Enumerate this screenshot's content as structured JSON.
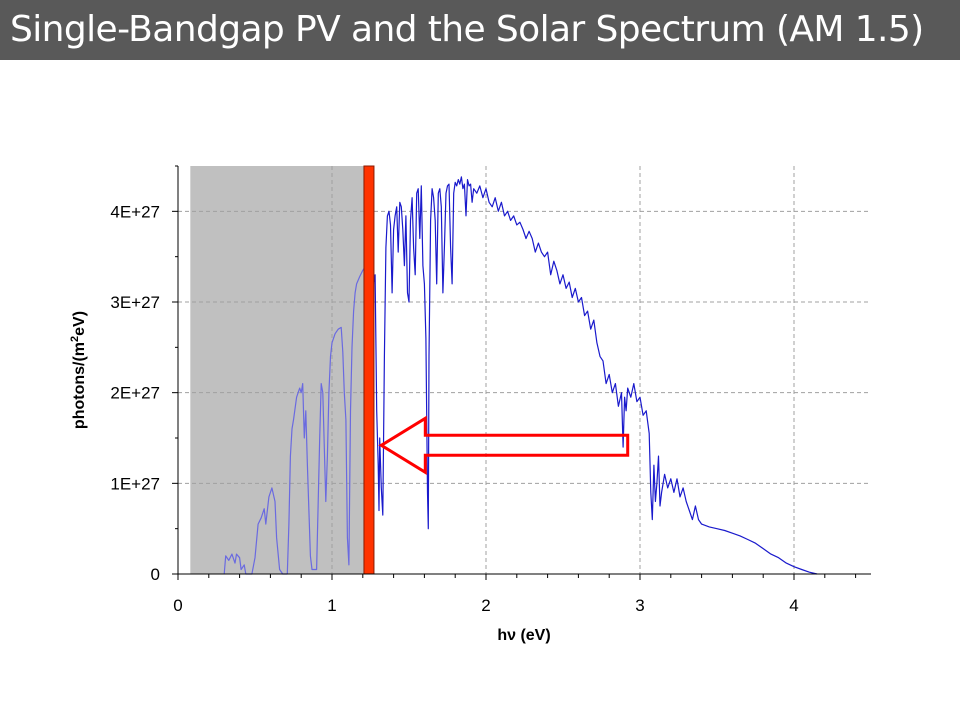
{
  "slide": {
    "title": "Single-Bandgap PV and the Solar Spectrum (AM 1.5)"
  },
  "chart_data": {
    "type": "line",
    "title": "",
    "xlabel": "hν (eV)",
    "ylabel_main": "photons/(m",
    "ylabel_sup": "2",
    "ylabel_end": "eV)",
    "xlim": [
      0,
      4.5
    ],
    "ylim": [
      0,
      4.5e+27
    ],
    "xticks": [
      0,
      1,
      2,
      3,
      4
    ],
    "xtick_labels": [
      "0",
      "1",
      "2",
      "3",
      "4"
    ],
    "yticks": [
      0,
      1e+27,
      2e+27,
      3e+27,
      4e+27
    ],
    "ytick_labels": [
      "0",
      "1E+27",
      "2E+27",
      "3E+27",
      "4E+27"
    ],
    "grid": true,
    "grid_style": "dashed",
    "bandgap_eV": 1.24,
    "absorbed_region": [
      0.08,
      1.24
    ],
    "arrow": {
      "from_eV": 2.92,
      "to_eV": 1.32,
      "y_center": 1.42e+27,
      "color": "#ff0000"
    },
    "colors": {
      "spectrum_absorbed": "#6a6ae0",
      "spectrum": "#1a1acc",
      "bandgap_bar": "#ff3300",
      "shade": "#c0c0c0",
      "grid": "#a0a0a0"
    },
    "series": [
      {
        "values": [
          [
            0.3,
            0.0
          ],
          [
            0.31,
            2e+26
          ],
          [
            0.33,
            1.5e+26
          ],
          [
            0.35,
            2.2e+26
          ],
          [
            0.37,
            1.2e+26
          ],
          [
            0.38,
            2.2e+26
          ],
          [
            0.4,
            1.8e+26
          ],
          [
            0.41,
            5e+25
          ],
          [
            0.43,
            1e+26
          ],
          [
            0.44,
            0.0
          ],
          [
            0.48,
            0.0
          ],
          [
            0.5,
            1.8e+26
          ],
          [
            0.52,
            5.5e+26
          ],
          [
            0.54,
            6.2e+26
          ],
          [
            0.56,
            7.2e+26
          ],
          [
            0.57,
            5.5e+26
          ],
          [
            0.59,
            8.5e+26
          ],
          [
            0.61,
            9.5e+26
          ],
          [
            0.63,
            8e+26
          ],
          [
            0.64,
            4e+26
          ],
          [
            0.66,
            5e+25
          ],
          [
            0.68,
            0.0
          ],
          [
            0.71,
            0.0
          ],
          [
            0.72,
            5.5e+26
          ],
          [
            0.73,
            1.3e+27
          ],
          [
            0.74,
            1.6e+27
          ],
          [
            0.75,
            1.7e+27
          ],
          [
            0.77,
            1.95e+27
          ],
          [
            0.79,
            2.05e+27
          ],
          [
            0.8,
            2e+27
          ],
          [
            0.81,
            2.1e+27
          ],
          [
            0.82,
            1.5e+27
          ],
          [
            0.83,
            1.8e+27
          ],
          [
            0.84,
            1.2e+27
          ],
          [
            0.85,
            7e+26
          ],
          [
            0.86,
            2e+26
          ],
          [
            0.87,
            5e+25
          ],
          [
            0.9,
            5e+25
          ],
          [
            0.91,
            7.5e+26
          ],
          [
            0.92,
            1.5e+27
          ],
          [
            0.93,
            2.1e+27
          ],
          [
            0.94,
            2e+27
          ],
          [
            0.95,
            1.4e+27
          ],
          [
            0.96,
            8e+26
          ],
          [
            0.97,
            1.3e+27
          ],
          [
            0.98,
            2e+27
          ],
          [
            0.99,
            2.4e+27
          ],
          [
            1.0,
            2.55e+27
          ],
          [
            1.02,
            2.65e+27
          ],
          [
            1.04,
            2.7e+27
          ],
          [
            1.06,
            2.72e+27
          ],
          [
            1.07,
            2.45e+27
          ],
          [
            1.08,
            2e+27
          ],
          [
            1.09,
            1.7e+27
          ],
          [
            1.1,
            4e+26
          ],
          [
            1.11,
            1e+26
          ],
          [
            1.12,
            1.8e+27
          ],
          [
            1.13,
            2.5e+27
          ],
          [
            1.14,
            2.9e+27
          ],
          [
            1.15,
            3.1e+27
          ],
          [
            1.16,
            3.2e+27
          ],
          [
            1.18,
            3.28e+27
          ],
          [
            1.2,
            3.35e+27
          ],
          [
            1.22,
            3.4e+27
          ],
          [
            1.24,
            3.42e+27
          ]
        ]
      },
      {
        "values": [
          [
            1.24,
            3.42e+27
          ],
          [
            1.26,
            3.35e+27
          ],
          [
            1.27,
            3.2e+27
          ],
          [
            1.28,
            3.3e+27
          ],
          [
            1.29,
            1.8e+27
          ],
          [
            1.3,
            1.2e+27
          ],
          [
            1.305,
            7e+26
          ],
          [
            1.31,
            1.5e+27
          ],
          [
            1.32,
            9.5e+26
          ],
          [
            1.33,
            6.5e+26
          ],
          [
            1.34,
            2.4e+27
          ],
          [
            1.35,
            3.6e+27
          ],
          [
            1.36,
            3.95e+27
          ],
          [
            1.37,
            4e+27
          ],
          [
            1.38,
            3.85e+27
          ],
          [
            1.39,
            3.1e+27
          ],
          [
            1.4,
            3.8e+27
          ],
          [
            1.41,
            3.95e+27
          ],
          [
            1.42,
            4.05e+27
          ],
          [
            1.43,
            3.55e+27
          ],
          [
            1.44,
            4.1e+27
          ],
          [
            1.45,
            4.05e+27
          ],
          [
            1.46,
            3.8e+27
          ],
          [
            1.47,
            3.4e+27
          ],
          [
            1.48,
            3.95e+27
          ],
          [
            1.49,
            3.1e+27
          ],
          [
            1.5,
            3e+27
          ],
          [
            1.51,
            3.9e+27
          ],
          [
            1.52,
            4.15e+27
          ],
          [
            1.53,
            3.6e+27
          ],
          [
            1.54,
            3.3e+27
          ],
          [
            1.55,
            4.2e+27
          ],
          [
            1.56,
            4.25e+27
          ],
          [
            1.57,
            3.7e+27
          ],
          [
            1.58,
            4.28e+27
          ],
          [
            1.59,
            3.4e+27
          ],
          [
            1.6,
            3.2e+27
          ],
          [
            1.61,
            2.6e+27
          ],
          [
            1.62,
            9e+26
          ],
          [
            1.625,
            5e+26
          ],
          [
            1.63,
            2.4e+27
          ],
          [
            1.64,
            3.9e+27
          ],
          [
            1.65,
            4.25e+27
          ],
          [
            1.66,
            4.15e+27
          ],
          [
            1.67,
            3.9e+27
          ],
          [
            1.68,
            3.2e+27
          ],
          [
            1.69,
            4.2e+27
          ],
          [
            1.7,
            4.25e+27
          ],
          [
            1.71,
            4.05e+27
          ],
          [
            1.72,
            3.1e+27
          ],
          [
            1.73,
            3.6e+27
          ],
          [
            1.74,
            4.2e+27
          ],
          [
            1.75,
            4.28e+27
          ],
          [
            1.76,
            4.3e+27
          ],
          [
            1.77,
            3.6e+27
          ],
          [
            1.78,
            3.2e+27
          ],
          [
            1.79,
            4.2e+27
          ],
          [
            1.8,
            4.32e+27
          ],
          [
            1.81,
            4.28e+27
          ],
          [
            1.82,
            4.35e+27
          ],
          [
            1.83,
            4.3e+27
          ],
          [
            1.84,
            4.38e+27
          ],
          [
            1.85,
            4.25e+27
          ],
          [
            1.86,
            4.3e+27
          ],
          [
            1.87,
            3.95e+27
          ],
          [
            1.88,
            4.35e+27
          ],
          [
            1.89,
            4.28e+27
          ],
          [
            1.9,
            4.3e+27
          ],
          [
            1.91,
            4.1e+27
          ],
          [
            1.92,
            4.25e+27
          ],
          [
            1.94,
            4.2e+27
          ],
          [
            1.96,
            4.28e+27
          ],
          [
            1.98,
            4.15e+27
          ],
          [
            2.0,
            4.25e+27
          ],
          [
            2.02,
            4.1e+27
          ],
          [
            2.04,
            4.05e+27
          ],
          [
            2.06,
            4.15e+27
          ],
          [
            2.08,
            4e+27
          ],
          [
            2.1,
            4.1e+27
          ],
          [
            2.12,
            3.95e+27
          ],
          [
            2.14,
            4e+27
          ],
          [
            2.16,
            3.9e+27
          ],
          [
            2.18,
            3.95e+27
          ],
          [
            2.2,
            3.85e+27
          ],
          [
            2.22,
            3.88e+27
          ],
          [
            2.24,
            3.8e+27
          ],
          [
            2.26,
            3.7e+27
          ],
          [
            2.28,
            3.78e+27
          ],
          [
            2.3,
            3.7e+27
          ],
          [
            2.32,
            3.55e+27
          ],
          [
            2.34,
            3.65e+27
          ],
          [
            2.36,
            3.55e+27
          ],
          [
            2.38,
            3.5e+27
          ],
          [
            2.4,
            3.55e+27
          ],
          [
            2.42,
            3.3e+27
          ],
          [
            2.44,
            3.45e+27
          ],
          [
            2.46,
            3.35e+27
          ],
          [
            2.48,
            3.2e+27
          ],
          [
            2.5,
            3.3e+27
          ],
          [
            2.52,
            3.15e+27
          ],
          [
            2.54,
            3.22e+27
          ],
          [
            2.56,
            3.05e+27
          ],
          [
            2.58,
            3.15e+27
          ],
          [
            2.6,
            3e+27
          ],
          [
            2.62,
            3.05e+27
          ],
          [
            2.64,
            2.85e+27
          ],
          [
            2.66,
            2.9e+27
          ],
          [
            2.68,
            2.7e+27
          ],
          [
            2.7,
            2.8e+27
          ],
          [
            2.72,
            2.55e+27
          ],
          [
            2.74,
            2.4e+27
          ],
          [
            2.76,
            2.35e+27
          ],
          [
            2.78,
            2.1e+27
          ],
          [
            2.8,
            2.2e+27
          ],
          [
            2.82,
            2e+27
          ],
          [
            2.84,
            2.1e+27
          ],
          [
            2.86,
            1.85e+27
          ],
          [
            2.88,
            2e+27
          ],
          [
            2.89,
            1.4e+27
          ],
          [
            2.9,
            1.95e+27
          ],
          [
            2.91,
            1.8e+27
          ],
          [
            2.92,
            2.05e+27
          ],
          [
            2.94,
            1.95e+27
          ],
          [
            2.96,
            2.1e+27
          ],
          [
            2.98,
            1.9e+27
          ],
          [
            3.0,
            1.95e+27
          ],
          [
            3.02,
            1.75e+27
          ],
          [
            3.04,
            1.8e+27
          ],
          [
            3.06,
            1.55e+27
          ],
          [
            3.07,
            9e+26
          ],
          [
            3.08,
            6e+26
          ],
          [
            3.09,
            1.2e+27
          ],
          [
            3.1,
            8e+26
          ],
          [
            3.11,
            1e+27
          ],
          [
            3.12,
            1.3e+27
          ],
          [
            3.13,
            7.5e+26
          ],
          [
            3.14,
            9e+26
          ],
          [
            3.16,
            1.1e+27
          ],
          [
            3.18,
            9.5e+26
          ],
          [
            3.2,
            1.05e+27
          ],
          [
            3.22,
            9e+26
          ],
          [
            3.24,
            1.05e+27
          ],
          [
            3.26,
            8.5e+26
          ],
          [
            3.28,
            9.5e+26
          ],
          [
            3.3,
            8e+26
          ],
          [
            3.32,
            7e+26
          ],
          [
            3.34,
            6e+26
          ],
          [
            3.36,
            7.5e+26
          ],
          [
            3.38,
            6e+26
          ],
          [
            3.4,
            5.5e+26
          ],
          [
            3.45,
            5.2e+26
          ],
          [
            3.5,
            5e+26
          ],
          [
            3.55,
            4.8e+26
          ],
          [
            3.6,
            4.5e+26
          ],
          [
            3.65,
            4.2e+26
          ],
          [
            3.7,
            3.8e+26
          ],
          [
            3.75,
            3.4e+26
          ],
          [
            3.8,
            2.8e+26
          ],
          [
            3.85,
            2.2e+26
          ],
          [
            3.9,
            1.8e+26
          ],
          [
            3.95,
            1.2e+26
          ],
          [
            4.0,
            8e+25
          ],
          [
            4.05,
            5e+25
          ],
          [
            4.1,
            2e+25
          ],
          [
            4.15,
            0.0
          ]
        ]
      }
    ]
  }
}
